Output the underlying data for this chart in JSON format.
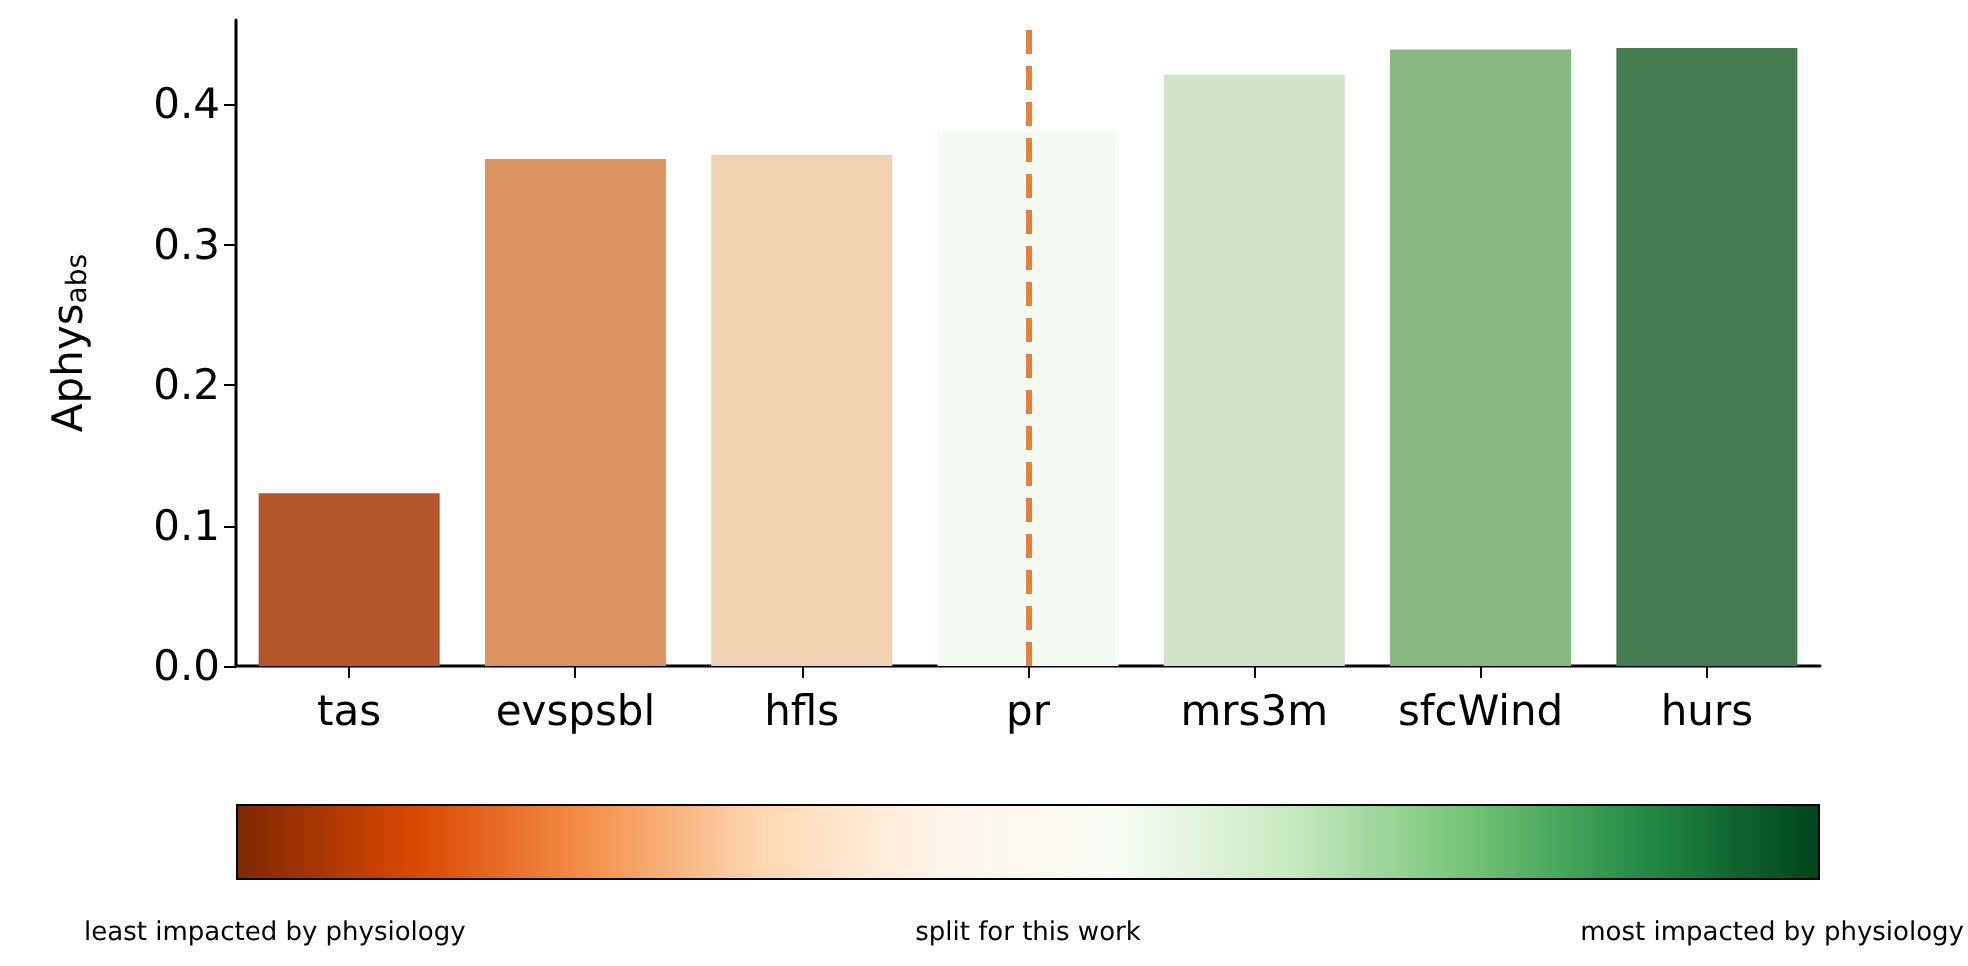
{
  "chart_data": {
    "type": "bar",
    "ylabel": "Aphys$_{abs}$",
    "categories": [
      "tas",
      "evspsbl",
      "hfls",
      "pr",
      "mrs3m",
      "sfcWind",
      "hurs"
    ],
    "values": [
      0.123,
      0.361,
      0.364,
      0.38,
      0.421,
      0.439,
      0.44
    ],
    "colors": [
      "#b5572c",
      "#dc9562",
      "#f0d2b0",
      "#f4f9f2",
      "#d0e4c8",
      "#88b882",
      "#447c4f"
    ],
    "ylim": [
      0,
      0.46
    ],
    "yticks": [
      {
        "value": 0,
        "label": "0.0"
      },
      0.1,
      0.2,
      0.3,
      0.4
    ],
    "grid": false,
    "ref_lines": [
      {
        "axis": "x",
        "value": "pr",
        "color": "#e8803a",
        "line_style": "dashed"
      }
    ],
    "annotations": [
      "least impacted by physiology",
      "split for this work",
      "most impacted by physiology"
    ]
  }
}
